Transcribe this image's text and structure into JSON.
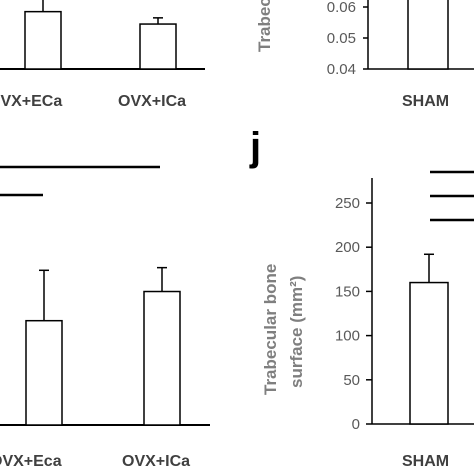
{
  "panel_label_j": "j",
  "chart_data": [
    {
      "type": "bar",
      "panel": "top-left (cropped)",
      "categories": [
        "OVX+ECa",
        "OVX+ICa"
      ],
      "values": [
        0.0585,
        0.0545
      ],
      "errors": [
        0.0045,
        0.002
      ],
      "ylim": [
        0.04,
        0.07
      ],
      "significance_lines": 0
    },
    {
      "type": "bar",
      "panel": "top-right (cropped)",
      "categories": [
        "SHAM"
      ],
      "ylabel": "Trabec",
      "yticks": [
        "0.04",
        "0.05",
        "0.06"
      ],
      "ylim": [
        0.04,
        0.07
      ]
    },
    {
      "type": "bar",
      "panel": "bottom-left (cropped)",
      "categories": [
        "OVX+Eca",
        "OVX+ICa"
      ],
      "values": [
        118,
        151
      ],
      "errors": [
        57,
        27
      ],
      "ylim": [
        0,
        275
      ],
      "significance_lines": 2
    },
    {
      "type": "bar",
      "panel": "j",
      "categories": [
        "SHAM"
      ],
      "values": [
        160
      ],
      "errors": [
        32
      ],
      "ylabel_line1": "Trabecular bone",
      "ylabel_line2": "surface (mm²)",
      "yticks": [
        "0",
        "50",
        "100",
        "150",
        "200",
        "250"
      ],
      "ylim": [
        0,
        275
      ],
      "significance_lines": 3
    }
  ]
}
